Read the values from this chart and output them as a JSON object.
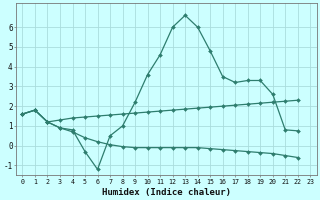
{
  "x": [
    0,
    1,
    2,
    3,
    4,
    5,
    6,
    7,
    8,
    9,
    10,
    11,
    12,
    13,
    14,
    15,
    16,
    17,
    18,
    19,
    20,
    21,
    22,
    23
  ],
  "curve1": [
    1.6,
    1.8,
    1.2,
    0.9,
    0.8,
    -0.3,
    -1.2,
    0.5,
    1.0,
    2.2,
    3.6,
    4.6,
    6.0,
    6.6,
    6.0,
    4.8,
    3.5,
    3.2,
    3.3,
    3.3,
    2.6,
    0.8,
    0.75,
    null
  ],
  "curve2": [
    1.6,
    1.8,
    1.2,
    1.3,
    1.4,
    1.45,
    1.5,
    1.55,
    1.6,
    1.65,
    1.7,
    1.75,
    1.8,
    1.85,
    1.9,
    1.95,
    2.0,
    2.05,
    2.1,
    2.15,
    2.2,
    2.25,
    2.3,
    null
  ],
  "curve3": [
    1.6,
    1.8,
    1.2,
    0.9,
    0.7,
    0.4,
    0.2,
    0.05,
    -0.05,
    -0.1,
    -0.1,
    -0.1,
    -0.1,
    -0.1,
    -0.1,
    -0.15,
    -0.2,
    -0.25,
    -0.3,
    -0.35,
    -0.4,
    -0.5,
    -0.6,
    null
  ],
  "color": "#2E7D6E",
  "bg_color": "#CCFFFF",
  "grid_color": "#AADDDD",
  "ylim": [
    -1.5,
    7.2
  ],
  "xlim": [
    -0.5,
    23.5
  ],
  "xlabel": "Humidex (Indice chaleur)",
  "yticks": [
    -1,
    0,
    1,
    2,
    3,
    4,
    5,
    6
  ],
  "xticks": [
    0,
    1,
    2,
    3,
    4,
    5,
    6,
    7,
    8,
    9,
    10,
    11,
    12,
    13,
    14,
    15,
    16,
    17,
    18,
    19,
    20,
    21,
    22,
    23
  ]
}
